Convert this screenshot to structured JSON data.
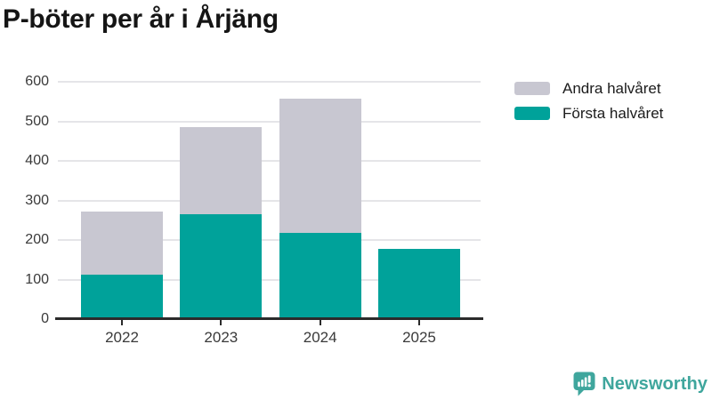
{
  "title": "P-böter per år i Årjäng",
  "chart_data": {
    "type": "bar",
    "stacked": true,
    "title": "P-böter per år i Årjäng",
    "categories": [
      "2022",
      "2023",
      "2024",
      "2025"
    ],
    "series": [
      {
        "name": "Första halvåret",
        "color": "#00a29a",
        "values": [
          112,
          266,
          217,
          178
        ]
      },
      {
        "name": "Andra halvåret",
        "color": "#c8c7d1",
        "values": [
          160,
          220,
          340,
          0
        ]
      }
    ],
    "stacked_totals": [
      272,
      486,
      557,
      178
    ],
    "xlabel": "",
    "ylabel": "",
    "ylim": [
      0,
      600
    ],
    "yticks": [
      0,
      100,
      200,
      300,
      400,
      500,
      600
    ],
    "grid": true,
    "legend_position": "top-right",
    "legend_order": [
      "Andra halvåret",
      "Första halvåret"
    ]
  },
  "branding": {
    "name": "Newsworthy",
    "icon": "bar-chart-speech-bubble-icon",
    "color": "#3fa69d"
  },
  "colors": {
    "first_half": "#00a29a",
    "second_half": "#c8c7d1",
    "gridline": "#e5e5e8",
    "axis_line": "#2b2b2b",
    "axis_text": "#3a3a3a",
    "legend_text": "#1b1b1b",
    "title_text": "#151515",
    "background": "#ffffff"
  }
}
